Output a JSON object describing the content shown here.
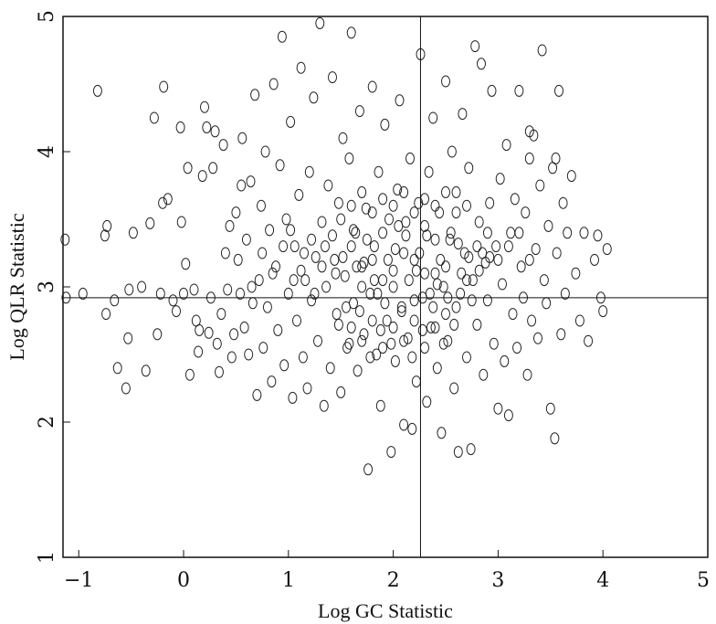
{
  "chart_data": {
    "type": "scatter",
    "title": "",
    "xlabel": "Log GC Statistic",
    "ylabel": "Log QLR Statistic",
    "xlim": [
      -1.15,
      5
    ],
    "ylim": [
      1,
      5
    ],
    "xticks": [
      "−1",
      "0",
      "1",
      "2",
      "3",
      "4",
      "5"
    ],
    "yticks": [
      "1",
      "2",
      "3",
      "4",
      "5"
    ],
    "reference_lines": {
      "x": 2.26,
      "y": 2.92
    },
    "grid": false,
    "marker": "open-circle",
    "series": [
      {
        "name": "",
        "points": [
          [
            -1.13,
            3.35
          ],
          [
            -1.12,
            2.92
          ],
          [
            -0.96,
            2.95
          ],
          [
            -0.82,
            4.45
          ],
          [
            -0.75,
            3.38
          ],
          [
            -0.74,
            2.8
          ],
          [
            -0.73,
            3.45
          ],
          [
            -0.66,
            2.9
          ],
          [
            -0.63,
            2.4
          ],
          [
            -0.55,
            2.25
          ],
          [
            -0.53,
            2.62
          ],
          [
            -0.52,
            2.98
          ],
          [
            -0.48,
            3.4
          ],
          [
            -0.4,
            3.0
          ],
          [
            -0.36,
            2.38
          ],
          [
            -0.32,
            3.47
          ],
          [
            -0.28,
            4.25
          ],
          [
            -0.25,
            2.65
          ],
          [
            -0.22,
            2.95
          ],
          [
            -0.2,
            3.62
          ],
          [
            -0.19,
            4.48
          ],
          [
            -0.15,
            3.65
          ],
          [
            -0.1,
            2.9
          ],
          [
            -0.07,
            2.82
          ],
          [
            -0.03,
            4.18
          ],
          [
            -0.02,
            3.48
          ],
          [
            0.0,
            2.95
          ],
          [
            0.02,
            3.17
          ],
          [
            0.04,
            3.88
          ],
          [
            0.06,
            2.35
          ],
          [
            0.1,
            2.98
          ],
          [
            0.12,
            2.75
          ],
          [
            0.14,
            2.52
          ],
          [
            0.15,
            2.68
          ],
          [
            0.18,
            3.82
          ],
          [
            0.2,
            4.33
          ],
          [
            0.22,
            4.18
          ],
          [
            0.24,
            2.66
          ],
          [
            0.26,
            2.92
          ],
          [
            0.28,
            3.88
          ],
          [
            0.3,
            4.15
          ],
          [
            0.32,
            2.58
          ],
          [
            0.34,
            2.37
          ],
          [
            0.36,
            2.8
          ],
          [
            0.38,
            4.05
          ],
          [
            0.4,
            3.25
          ],
          [
            0.42,
            2.98
          ],
          [
            0.44,
            3.45
          ],
          [
            0.46,
            2.48
          ],
          [
            0.48,
            2.65
          ],
          [
            0.5,
            3.55
          ],
          [
            0.52,
            3.2
          ],
          [
            0.54,
            2.95
          ],
          [
            0.56,
            4.1
          ],
          [
            0.58,
            2.7
          ],
          [
            0.6,
            3.35
          ],
          [
            0.62,
            2.5
          ],
          [
            0.64,
            3.78
          ],
          [
            0.66,
            2.88
          ],
          [
            0.68,
            4.42
          ],
          [
            0.7,
            2.2
          ],
          [
            0.72,
            3.05
          ],
          [
            0.74,
            3.6
          ],
          [
            0.76,
            2.55
          ],
          [
            0.78,
            4.0
          ],
          [
            0.8,
            2.85
          ],
          [
            0.82,
            3.42
          ],
          [
            0.84,
            2.3
          ],
          [
            0.86,
            4.5
          ],
          [
            0.88,
            3.15
          ],
          [
            0.9,
            2.68
          ],
          [
            0.92,
            3.9
          ],
          [
            0.94,
            4.85
          ],
          [
            0.96,
            2.42
          ],
          [
            0.98,
            3.5
          ],
          [
            1.0,
            2.95
          ],
          [
            1.02,
            4.22
          ],
          [
            1.04,
            2.18
          ],
          [
            1.06,
            3.3
          ],
          [
            1.08,
            2.75
          ],
          [
            1.1,
            3.68
          ],
          [
            1.12,
            4.62
          ],
          [
            1.14,
            2.48
          ],
          [
            1.16,
            3.05
          ],
          [
            1.18,
            2.25
          ],
          [
            1.2,
            3.85
          ],
          [
            1.22,
            2.9
          ],
          [
            1.24,
            4.4
          ],
          [
            1.26,
            3.22
          ],
          [
            1.28,
            2.6
          ],
          [
            1.3,
            4.95
          ],
          [
            1.32,
            3.48
          ],
          [
            1.34,
            2.12
          ],
          [
            1.36,
            3.0
          ],
          [
            1.38,
            3.75
          ],
          [
            1.4,
            2.4
          ],
          [
            1.42,
            4.55
          ],
          [
            1.44,
            3.2
          ],
          [
            1.46,
            2.8
          ],
          [
            1.48,
            3.62
          ],
          [
            1.5,
            2.22
          ],
          [
            1.52,
            4.1
          ],
          [
            1.54,
            3.08
          ],
          [
            1.56,
            2.55
          ],
          [
            1.58,
            3.95
          ],
          [
            1.6,
            4.88
          ],
          [
            1.62,
            2.88
          ],
          [
            1.64,
            3.4
          ],
          [
            1.66,
            2.38
          ],
          [
            1.68,
            4.3
          ],
          [
            1.7,
            3.15
          ],
          [
            1.72,
            2.65
          ],
          [
            1.74,
            3.58
          ],
          [
            1.76,
            1.65
          ],
          [
            1.78,
            2.95
          ],
          [
            1.8,
            4.48
          ],
          [
            1.82,
            3.3
          ],
          [
            1.84,
            2.5
          ],
          [
            1.86,
            3.85
          ],
          [
            1.88,
            2.12
          ],
          [
            1.9,
            3.05
          ],
          [
            1.92,
            4.2
          ],
          [
            1.94,
            2.75
          ],
          [
            1.96,
            3.5
          ],
          [
            1.98,
            1.78
          ],
          [
            2.0,
            3.12
          ],
          [
            2.02,
            2.45
          ],
          [
            2.04,
            3.72
          ],
          [
            2.06,
            4.38
          ],
          [
            2.08,
            2.85
          ],
          [
            2.1,
            1.98
          ],
          [
            2.12,
            3.38
          ],
          [
            2.14,
            2.62
          ],
          [
            2.16,
            3.95
          ],
          [
            2.18,
            1.95
          ],
          [
            2.2,
            3.2
          ],
          [
            2.22,
            2.3
          ],
          [
            2.24,
            3.62
          ],
          [
            2.26,
            4.72
          ],
          [
            2.28,
            2.92
          ],
          [
            2.3,
            3.45
          ],
          [
            2.32,
            2.15
          ],
          [
            2.34,
            3.85
          ],
          [
            2.36,
            2.7
          ],
          [
            2.38,
            4.25
          ],
          [
            2.4,
            3.1
          ],
          [
            2.42,
            2.4
          ],
          [
            2.44,
            3.55
          ],
          [
            2.46,
            1.92
          ],
          [
            2.48,
            3.0
          ],
          [
            2.5,
            4.52
          ],
          [
            2.52,
            2.6
          ],
          [
            2.54,
            3.35
          ],
          [
            2.56,
            4.0
          ],
          [
            2.58,
            2.25
          ],
          [
            2.6,
            3.7
          ],
          [
            2.62,
            1.78
          ],
          [
            2.64,
            2.95
          ],
          [
            2.66,
            4.28
          ],
          [
            2.68,
            3.25
          ],
          [
            2.7,
            2.48
          ],
          [
            2.72,
            3.88
          ],
          [
            2.74,
            1.8
          ],
          [
            2.76,
            3.05
          ],
          [
            2.78,
            4.78
          ],
          [
            2.8,
            2.72
          ],
          [
            2.82,
            3.48
          ],
          [
            2.84,
            4.65
          ],
          [
            2.86,
            2.35
          ],
          [
            2.88,
            3.18
          ],
          [
            2.9,
            2.9
          ],
          [
            2.92,
            3.62
          ],
          [
            2.94,
            4.45
          ],
          [
            2.96,
            2.58
          ],
          [
            2.98,
            3.3
          ],
          [
            3.0,
            2.1
          ],
          [
            3.02,
            3.8
          ],
          [
            3.04,
            3.02
          ],
          [
            3.06,
            2.45
          ],
          [
            3.08,
            4.05
          ],
          [
            3.1,
            2.05
          ],
          [
            3.12,
            3.4
          ],
          [
            3.14,
            2.8
          ],
          [
            3.16,
            3.65
          ],
          [
            3.18,
            2.55
          ],
          [
            3.2,
            4.45
          ],
          [
            3.22,
            3.15
          ],
          [
            3.24,
            2.92
          ],
          [
            3.26,
            3.55
          ],
          [
            3.28,
            2.35
          ],
          [
            3.3,
            3.95
          ],
          [
            3.32,
            2.75
          ],
          [
            3.34,
            4.12
          ],
          [
            3.36,
            3.28
          ],
          [
            3.38,
            2.62
          ],
          [
            3.4,
            3.75
          ],
          [
            3.42,
            4.75
          ],
          [
            3.44,
            3.05
          ],
          [
            3.46,
            2.88
          ],
          [
            3.48,
            3.45
          ],
          [
            3.5,
            2.1
          ],
          [
            3.52,
            3.88
          ],
          [
            3.54,
            1.88
          ],
          [
            3.56,
            3.25
          ],
          [
            3.58,
            4.45
          ],
          [
            3.6,
            2.65
          ],
          [
            3.62,
            3.62
          ],
          [
            3.64,
            2.95
          ],
          [
            3.66,
            3.4
          ],
          [
            3.7,
            3.82
          ],
          [
            3.74,
            3.1
          ],
          [
            3.78,
            2.75
          ],
          [
            3.82,
            3.4
          ],
          [
            3.86,
            2.6
          ],
          [
            3.92,
            3.2
          ],
          [
            3.98,
            2.92
          ],
          [
            4.0,
            2.82
          ],
          [
            4.04,
            3.28
          ],
          [
            3.95,
            3.38
          ],
          [
            3.55,
            3.95
          ],
          [
            3.3,
            4.15
          ],
          [
            0.55,
            3.75
          ],
          [
            1.5,
            3.5
          ],
          [
            1.6,
            3.3
          ],
          [
            1.7,
            3.0
          ],
          [
            1.8,
            3.2
          ],
          [
            1.9,
            3.4
          ],
          [
            2.0,
            3.0
          ],
          [
            2.1,
            3.25
          ],
          [
            2.2,
            2.9
          ],
          [
            2.3,
            3.1
          ],
          [
            2.4,
            3.35
          ],
          [
            2.5,
            3.15
          ],
          [
            2.6,
            2.85
          ],
          [
            2.7,
            3.05
          ],
          [
            2.8,
            3.3
          ],
          [
            1.55,
            2.85
          ],
          [
            1.65,
            3.15
          ],
          [
            1.75,
            3.35
          ],
          [
            1.85,
            2.95
          ],
          [
            1.95,
            3.2
          ],
          [
            2.05,
            3.45
          ],
          [
            2.15,
            3.05
          ],
          [
            2.25,
            3.25
          ],
          [
            2.35,
            2.95
          ],
          [
            2.45,
            3.2
          ],
          [
            2.55,
            3.4
          ],
          [
            2.65,
            3.1
          ],
          [
            2.75,
            2.9
          ],
          [
            2.85,
            3.25
          ],
          [
            1.45,
            3.1
          ],
          [
            1.35,
            3.3
          ],
          [
            1.25,
            2.95
          ],
          [
            1.15,
            3.25
          ],
          [
            1.05,
            3.05
          ],
          [
            0.95,
            3.3
          ],
          [
            0.85,
            3.1
          ],
          [
            0.75,
            3.25
          ],
          [
            0.65,
            3.0
          ],
          [
            1.6,
            2.7
          ],
          [
            1.7,
            2.6
          ],
          [
            1.8,
            2.75
          ],
          [
            1.9,
            2.55
          ],
          [
            2.0,
            2.7
          ],
          [
            2.1,
            2.6
          ],
          [
            2.2,
            2.75
          ],
          [
            2.3,
            2.55
          ],
          [
            2.4,
            2.7
          ],
          [
            2.5,
            2.8
          ],
          [
            1.6,
            3.6
          ],
          [
            1.7,
            3.7
          ],
          [
            1.8,
            3.55
          ],
          [
            1.9,
            3.65
          ],
          [
            2.0,
            3.6
          ],
          [
            2.1,
            3.7
          ],
          [
            2.2,
            3.55
          ],
          [
            2.3,
            3.65
          ],
          [
            2.4,
            3.6
          ],
          [
            2.5,
            3.7
          ],
          [
            2.6,
            3.55
          ],
          [
            2.7,
            3.6
          ],
          [
            2.9,
            3.4
          ],
          [
            3.0,
            3.2
          ],
          [
            3.1,
            3.3
          ],
          [
            3.2,
            3.4
          ],
          [
            3.3,
            3.2
          ],
          [
            1.52,
            3.22
          ],
          [
            1.62,
            3.42
          ],
          [
            1.72,
            3.18
          ],
          [
            1.82,
            3.05
          ],
          [
            1.92,
            2.88
          ],
          [
            2.02,
            3.28
          ],
          [
            2.12,
            3.48
          ],
          [
            2.22,
            3.12
          ],
          [
            2.32,
            3.38
          ],
          [
            2.42,
            3.02
          ],
          [
            2.52,
            2.92
          ],
          [
            2.62,
            3.32
          ],
          [
            2.72,
            3.22
          ],
          [
            2.82,
            3.12
          ],
          [
            2.92,
            3.22
          ],
          [
            1.42,
            3.38
          ],
          [
            1.32,
            3.15
          ],
          [
            1.22,
            3.35
          ],
          [
            1.12,
            3.12
          ],
          [
            1.02,
            3.42
          ],
          [
            1.48,
            2.72
          ],
          [
            1.58,
            2.58
          ],
          [
            1.68,
            2.82
          ],
          [
            1.78,
            2.48
          ],
          [
            1.88,
            2.68
          ],
          [
            1.98,
            2.58
          ],
          [
            2.08,
            2.82
          ],
          [
            2.18,
            2.48
          ],
          [
            2.28,
            2.68
          ],
          [
            2.38,
            2.85
          ],
          [
            2.48,
            2.58
          ],
          [
            2.58,
            2.72
          ]
        ]
      }
    ]
  }
}
